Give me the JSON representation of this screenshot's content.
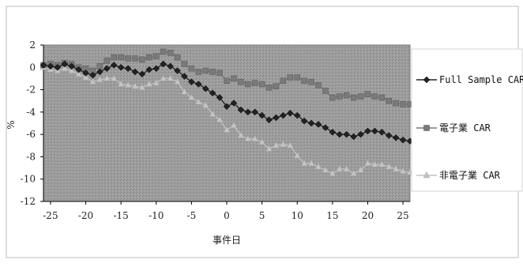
{
  "chart_data": {
    "type": "line",
    "xlabel": "事件日",
    "ylabel": "%",
    "xlim": [
      -26,
      26
    ],
    "ylim": [
      -12,
      2
    ],
    "xticks": [
      -25,
      -20,
      -15,
      -10,
      -5,
      0,
      5,
      10,
      15,
      20,
      25
    ],
    "yticks": [
      2,
      0,
      -2,
      -4,
      -6,
      -8,
      -10,
      -12
    ],
    "x": [
      -26,
      -25,
      -24,
      -23,
      -22,
      -21,
      -20,
      -19,
      -18,
      -17,
      -16,
      -15,
      -14,
      -13,
      -12,
      -11,
      -10,
      -9,
      -8,
      -7,
      -6,
      -5,
      -4,
      -3,
      -2,
      -1,
      0,
      1,
      2,
      3,
      4,
      5,
      6,
      7,
      8,
      9,
      10,
      11,
      12,
      13,
      14,
      15,
      16,
      17,
      18,
      19,
      20,
      21,
      22,
      23,
      24,
      25,
      26
    ],
    "series": [
      {
        "name": "Full Sample CAR",
        "color": "#222222",
        "marker": "diamond",
        "values": [
          0.2,
          0.1,
          0.0,
          0.3,
          0.1,
          -0.2,
          -0.5,
          -0.7,
          -0.4,
          -0.1,
          0.2,
          0.0,
          -0.1,
          -0.4,
          -0.6,
          -0.2,
          -0.1,
          0.3,
          0.1,
          -0.3,
          -0.8,
          -1.3,
          -1.5,
          -1.9,
          -2.3,
          -2.7,
          -3.5,
          -3.2,
          -3.8,
          -4.0,
          -4.0,
          -4.3,
          -4.7,
          -4.5,
          -4.3,
          -4.1,
          -4.3,
          -4.8,
          -5.0,
          -5.1,
          -5.4,
          -5.8,
          -6.0,
          -6.0,
          -6.2,
          -6.0,
          -5.7,
          -5.7,
          -5.8,
          -6.1,
          -6.3,
          -6.5,
          -6.6
        ]
      },
      {
        "name": "電子業 CAR",
        "color": "#7a7a7a",
        "marker": "square",
        "values": [
          0.2,
          0.3,
          0.2,
          0.4,
          0.3,
          0.0,
          -0.1,
          -0.3,
          0.1,
          0.6,
          0.9,
          0.9,
          0.8,
          0.8,
          0.7,
          0.9,
          1.0,
          1.4,
          1.3,
          0.9,
          0.3,
          -0.1,
          -0.4,
          -0.3,
          -0.4,
          -0.5,
          -1.2,
          -1.0,
          -1.3,
          -1.5,
          -1.4,
          -1.5,
          -1.8,
          -1.7,
          -1.2,
          -0.9,
          -0.9,
          -1.2,
          -1.3,
          -1.6,
          -2.1,
          -2.7,
          -2.6,
          -2.5,
          -2.7,
          -2.6,
          -2.4,
          -2.6,
          -2.7,
          -3.0,
          -3.2,
          -3.3,
          -3.3
        ]
      },
      {
        "name": "非電子業 CAR",
        "color": "#c4c4c4",
        "marker": "triangle",
        "values": [
          0.0,
          -0.2,
          -0.3,
          -0.1,
          -0.3,
          -0.6,
          -0.9,
          -1.3,
          -1.1,
          -1.0,
          -1.0,
          -1.5,
          -1.6,
          -1.7,
          -1.8,
          -1.5,
          -1.4,
          -1.0,
          -1.0,
          -1.3,
          -2.2,
          -2.7,
          -3.1,
          -3.4,
          -4.2,
          -4.7,
          -5.6,
          -5.2,
          -6.1,
          -6.4,
          -6.4,
          -6.7,
          -7.3,
          -7.0,
          -6.9,
          -7.0,
          -7.9,
          -8.6,
          -8.6,
          -8.9,
          -9.2,
          -9.5,
          -9.1,
          -9.1,
          -9.5,
          -9.2,
          -8.6,
          -8.7,
          -8.7,
          -8.9,
          -9.1,
          -9.3,
          -9.4
        ]
      }
    ],
    "legend_position": "right",
    "grid": false
  }
}
